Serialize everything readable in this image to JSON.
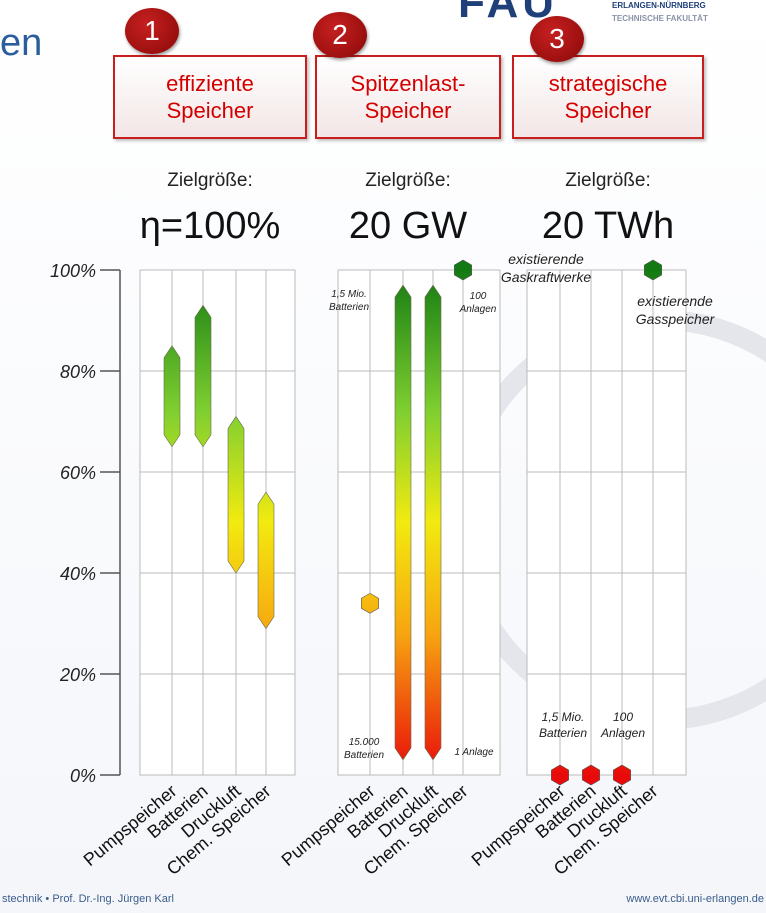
{
  "header": {
    "title": "en",
    "logo": "FAU",
    "university": "ERLANGEN-NÜRNBERG",
    "faculty": "TECHNISCHE FAKULTÄT"
  },
  "chart_data": [
    {
      "type": "range",
      "number": "1",
      "title": "effiziente Speicher",
      "target_label": "Zielgröße:",
      "target": "η=100%",
      "categories": [
        "Pumpspeicher",
        "Batterien",
        "Druckluft",
        "Chem. Speicher"
      ],
      "values": [
        [
          65,
          85
        ],
        [
          65,
          93
        ],
        [
          40,
          71
        ],
        [
          29,
          56
        ]
      ],
      "ylim": [
        0,
        100
      ],
      "yticks": [
        {
          "value": 0,
          "label": "0%"
        },
        {
          "value": 20,
          "label": "20%"
        },
        {
          "value": 40,
          "label": "40%"
        },
        {
          "value": 60,
          "label": "60%"
        },
        {
          "value": 80,
          "label": "80%"
        },
        {
          "value": 100,
          "label": "100%"
        }
      ],
      "annotations": []
    },
    {
      "type": "range",
      "number": "2",
      "title": "Spitzenlast-Speicher",
      "target_label": "Zielgröße:",
      "target": "20 GW",
      "categories": [
        "Pumpspeicher",
        "Batterien",
        "Druckluft",
        "Chem. Speicher"
      ],
      "values": [
        34,
        [
          3,
          97
        ],
        [
          3,
          97
        ],
        100
      ],
      "annotations": [
        "1,5 Mio. Batterien",
        "15.000 Batterien",
        "100 Anlagen",
        "1 Anlage",
        "existierende Gaskraftwerke"
      ]
    },
    {
      "type": "range",
      "number": "3",
      "title": "strategische Speicher",
      "target_label": "Zielgröße:",
      "target": "20 TWh",
      "categories": [
        "Pumpspeicher",
        "Batterien",
        "Druckluft",
        "Chem. Speicher"
      ],
      "values": [
        0,
        0,
        0,
        100
      ],
      "annotations": [
        "existierende Gasspeicher",
        "1,5 Mio. Batterien",
        "100 Anlagen"
      ]
    }
  ],
  "footer": {
    "left": "stechnik • Prof. Dr.-Ing. Jürgen Karl",
    "right": "www.evt.cbi.uni-erlangen.de"
  }
}
